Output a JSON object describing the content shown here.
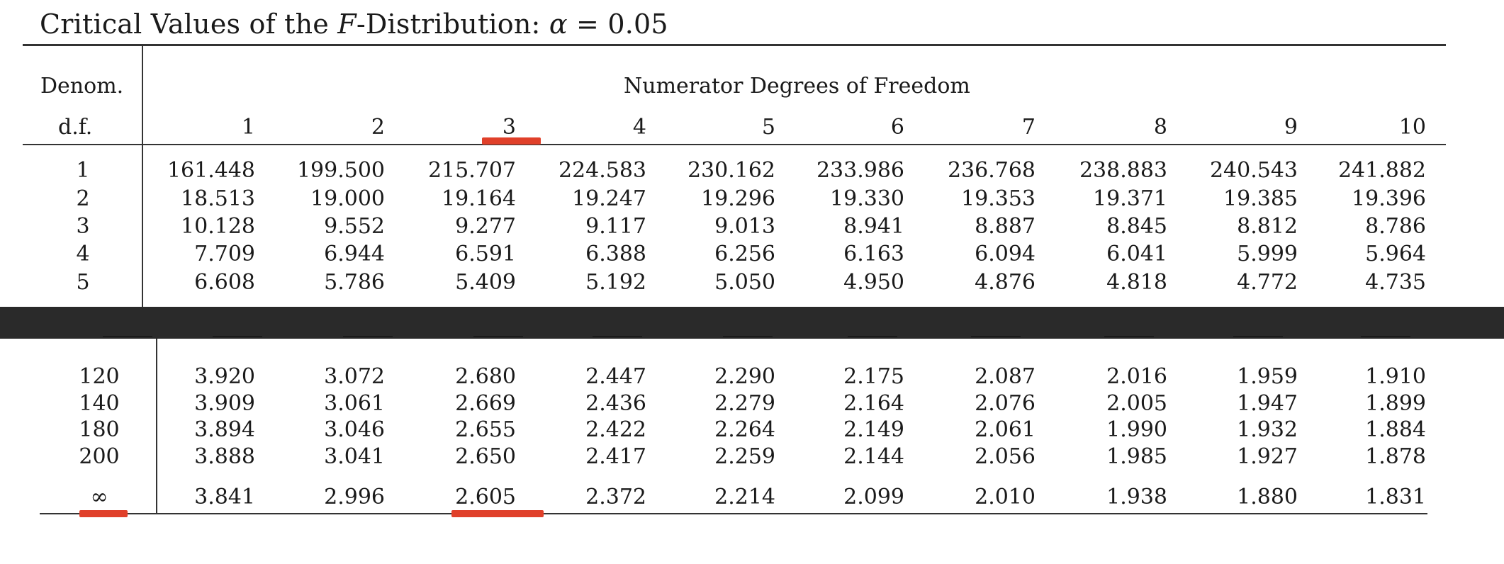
{
  "title": {
    "prefix": "Critical Values of the ",
    "variable": "F",
    "suffix": "-Distribution: ",
    "alpha_symbol": "α",
    "equals": " = ",
    "alpha_value": "0.05"
  },
  "header": {
    "denom_line1": "Denom.",
    "denom_line2": "d.f.",
    "numerator_title": "Numerator Degrees of Freedom",
    "columns": [
      "1",
      "2",
      "3",
      "4",
      "5",
      "6",
      "7",
      "8",
      "9",
      "10"
    ]
  },
  "top_rows": [
    {
      "df": "1",
      "values": [
        "161.448",
        "199.500",
        "215.707",
        "224.583",
        "230.162",
        "233.986",
        "236.768",
        "238.883",
        "240.543",
        "241.882"
      ]
    },
    {
      "df": "2",
      "values": [
        "18.513",
        "19.000",
        "19.164",
        "19.247",
        "19.296",
        "19.330",
        "19.353",
        "19.371",
        "19.385",
        "19.396"
      ]
    },
    {
      "df": "3",
      "values": [
        "10.128",
        "9.552",
        "9.277",
        "9.117",
        "9.013",
        "8.941",
        "8.887",
        "8.845",
        "8.812",
        "8.786"
      ]
    },
    {
      "df": "4",
      "values": [
        "7.709",
        "6.944",
        "6.591",
        "6.388",
        "6.256",
        "6.163",
        "6.094",
        "6.041",
        "5.999",
        "5.964"
      ]
    },
    {
      "df": "5",
      "values": [
        "6.608",
        "5.786",
        "5.409",
        "5.192",
        "5.050",
        "4.950",
        "4.876",
        "4.818",
        "4.772",
        "4.735"
      ]
    }
  ],
  "bottom_rows": [
    {
      "df": "120",
      "values": [
        "3.920",
        "3.072",
        "2.680",
        "2.447",
        "2.290",
        "2.175",
        "2.087",
        "2.016",
        "1.959",
        "1.910"
      ]
    },
    {
      "df": "140",
      "values": [
        "3.909",
        "3.061",
        "2.669",
        "2.436",
        "2.279",
        "2.164",
        "2.076",
        "2.005",
        "1.947",
        "1.899"
      ]
    },
    {
      "df": "180",
      "values": [
        "3.894",
        "3.046",
        "2.655",
        "2.422",
        "2.264",
        "2.149",
        "2.061",
        "1.990",
        "1.932",
        "1.884"
      ]
    },
    {
      "df": "200",
      "values": [
        "3.888",
        "3.041",
        "2.650",
        "2.417",
        "2.259",
        "2.144",
        "2.056",
        "1.985",
        "1.927",
        "1.878"
      ]
    }
  ],
  "infinity_row": {
    "df": "∞",
    "values": [
      "3.841",
      "2.996",
      "2.605",
      "2.372",
      "2.214",
      "2.099",
      "2.010",
      "1.938",
      "1.880",
      "1.831"
    ]
  },
  "colors": {
    "marker": "#e0402a",
    "occluder": "#2a2a2a"
  }
}
